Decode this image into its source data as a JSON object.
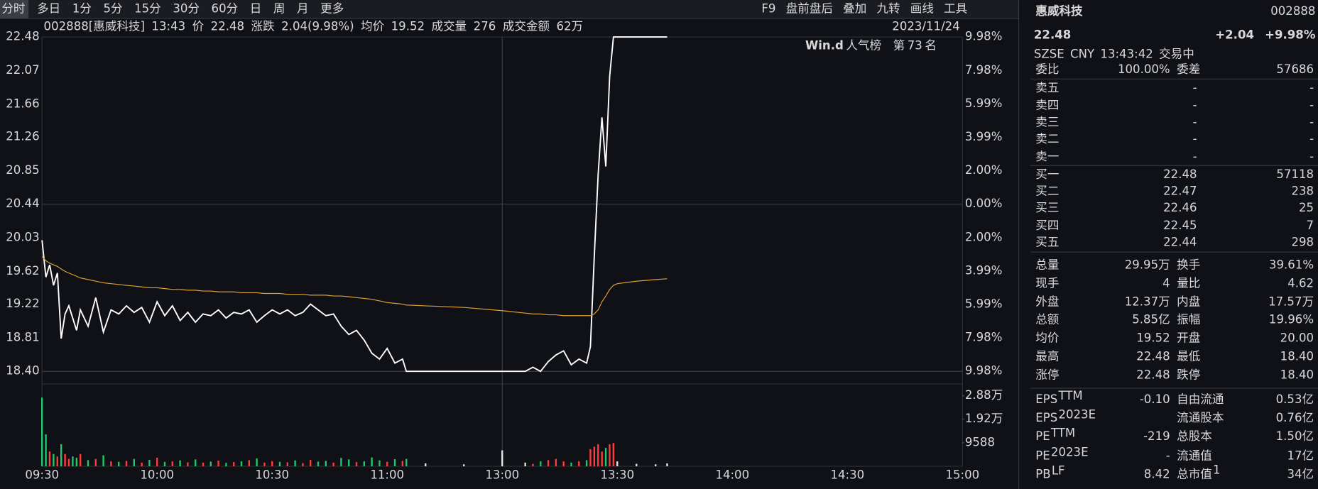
{
  "toolbar": {
    "left": [
      "分时",
      "多日",
      "1分",
      "5分",
      "15分",
      "30分",
      "60分",
      "日",
      "周",
      "月",
      "更多"
    ],
    "right": [
      "F9",
      "盘前盘后",
      "叠加",
      "九转",
      "画线",
      "工具"
    ]
  },
  "info": [
    {
      "text": "002888[惠威科技]",
      "color": "#d8d8d8"
    },
    {
      "text": "13:43",
      "color": "#4fd6e0"
    },
    {
      "text": "价",
      "color": "#d8d8d8"
    },
    {
      "text": "22.48",
      "color": "#ff3b3b"
    },
    {
      "text": "涨跌",
      "color": "#d8d8d8"
    },
    {
      "text": "2.04(9.98%)",
      "color": "#ff3b3b"
    },
    {
      "text": "均价",
      "color": "#d8d8d8"
    },
    {
      "text": "19.52",
      "color": "#1fc96b"
    },
    {
      "text": "成交量",
      "color": "#d8d8d8"
    },
    {
      "text": "276",
      "color": "#d8d8d8"
    },
    {
      "text": "成交金额",
      "color": "#d8d8d8"
    },
    {
      "text": "62万",
      "color": "#d8d8d8"
    }
  ],
  "date": "2023/11/24",
  "badge": {
    "brand": "Win.d",
    "list": "人气榜",
    "rank_prefix": "第",
    "rank": "73",
    "rank_suffix": "名"
  },
  "chart_data": [
    {
      "type": "line",
      "x": [
        0,
        1,
        2,
        3,
        4,
        5,
        6,
        7,
        8,
        9,
        10,
        12,
        14,
        16,
        18,
        20,
        22,
        24,
        26,
        28,
        30,
        32,
        34,
        36,
        38,
        40,
        42,
        44,
        46,
        48,
        50,
        52,
        54,
        56,
        58,
        60,
        62,
        64,
        66,
        68,
        70,
        72,
        74,
        76,
        78,
        80,
        82,
        84,
        86,
        88,
        90,
        92,
        94,
        95,
        100,
        110,
        120,
        126,
        128,
        130,
        132,
        134,
        136,
        138,
        140,
        142,
        143,
        144,
        145,
        146,
        147,
        148,
        149,
        150,
        155,
        160,
        163
      ],
      "series": [
        {
          "color": "#ffffff",
          "values": [
            20.0,
            19.55,
            19.7,
            19.45,
            19.6,
            18.8,
            19.1,
            19.2,
            19.05,
            18.9,
            19.15,
            18.95,
            19.3,
            18.88,
            19.15,
            19.1,
            19.2,
            19.12,
            19.18,
            19.0,
            19.25,
            19.08,
            19.2,
            19.02,
            19.12,
            19.0,
            19.1,
            19.08,
            19.15,
            19.05,
            19.12,
            19.1,
            19.15,
            19.0,
            19.08,
            19.15,
            19.1,
            19.15,
            19.08,
            19.12,
            19.22,
            19.15,
            19.08,
            19.1,
            18.95,
            18.85,
            18.9,
            18.78,
            18.62,
            18.55,
            18.68,
            18.5,
            18.55,
            18.4,
            18.4,
            18.4,
            18.4,
            18.4,
            18.45,
            18.4,
            18.52,
            18.6,
            18.65,
            18.48,
            18.55,
            18.5,
            18.7,
            19.8,
            20.8,
            21.5,
            20.9,
            22.0,
            22.48,
            22.48,
            22.48,
            22.48,
            22.48
          ]
        },
        {
          "color": "#e0a030",
          "values": [
            19.8,
            19.75,
            19.72,
            19.7,
            19.68,
            19.65,
            19.62,
            19.6,
            19.58,
            19.56,
            19.54,
            19.52,
            19.5,
            19.48,
            19.47,
            19.46,
            19.45,
            19.44,
            19.43,
            19.42,
            19.42,
            19.41,
            19.4,
            19.4,
            19.39,
            19.39,
            19.38,
            19.38,
            19.37,
            19.37,
            19.37,
            19.36,
            19.36,
            19.36,
            19.35,
            19.35,
            19.35,
            19.34,
            19.34,
            19.34,
            19.33,
            19.33,
            19.33,
            19.32,
            19.32,
            19.31,
            19.3,
            19.29,
            19.28,
            19.26,
            19.24,
            19.23,
            19.22,
            19.21,
            19.2,
            19.18,
            19.14,
            19.11,
            19.1,
            19.1,
            19.09,
            19.09,
            19.08,
            19.08,
            19.08,
            19.08,
            19.08,
            19.1,
            19.15,
            19.25,
            19.32,
            19.4,
            19.45,
            19.47,
            19.5,
            19.52,
            19.53
          ]
        }
      ],
      "xlim": [
        0,
        240
      ],
      "ylim": [
        18.4,
        22.48
      ],
      "yticks": [
        {
          "value": 18.4,
          "label": "18.40"
        },
        18.81,
        19.22,
        19.62,
        20.03,
        20.44,
        20.85,
        21.26,
        21.66,
        22.07,
        22.48
      ],
      "y2lim": [
        -9.98,
        9.98
      ],
      "y2ticks": [
        {
          "value": -9.98,
          "label": "9.98%"
        },
        {
          "value": -7.98,
          "label": "7.98%"
        },
        {
          "value": -5.99,
          "label": "5.99%"
        },
        {
          "value": -3.99,
          "label": "3.99%"
        },
        {
          "value": -2.0,
          "label": "2.00%"
        },
        {
          "value": 0,
          "label": "0.00%"
        },
        {
          "value": 2.0,
          "label": "2.00%"
        },
        {
          "value": 3.99,
          "label": "3.99%"
        },
        {
          "value": 5.99,
          "label": "5.99%"
        },
        {
          "value": 7.98,
          "label": "7.98%"
        },
        {
          "value": 9.98,
          "label": "9.98%"
        }
      ],
      "up_color": "#ff3b3b",
      "down_color": "#1fc96b",
      "flat_color": "#e6e6e6"
    },
    {
      "type": "bar",
      "x": [
        0,
        1,
        2,
        3,
        4,
        5,
        6,
        7,
        8,
        9,
        10,
        12,
        14,
        16,
        18,
        20,
        22,
        24,
        26,
        28,
        30,
        32,
        34,
        36,
        38,
        40,
        42,
        44,
        46,
        48,
        50,
        52,
        54,
        56,
        58,
        60,
        62,
        64,
        66,
        68,
        70,
        72,
        74,
        76,
        78,
        80,
        82,
        84,
        86,
        88,
        90,
        92,
        94,
        95,
        100,
        110,
        120,
        126,
        128,
        130,
        132,
        134,
        136,
        138,
        140,
        142,
        143,
        144,
        145,
        146,
        147,
        148,
        149,
        150,
        155,
        160,
        163
      ],
      "values": [
        28000,
        13000,
        6000,
        5000,
        4000,
        9000,
        5000,
        3000,
        4000,
        3500,
        5000,
        2500,
        3000,
        4500,
        2000,
        1800,
        2200,
        3000,
        1500,
        2600,
        3500,
        1800,
        2000,
        2400,
        1600,
        2800,
        1500,
        1900,
        2300,
        1400,
        1700,
        2000,
        2500,
        3200,
        1500,
        2100,
        1800,
        1600,
        2400,
        1300,
        2600,
        1900,
        2200,
        1500,
        3400,
        2800,
        1700,
        2000,
        3600,
        2400,
        1800,
        2900,
        2200,
        3000,
        1200,
        800,
        6500,
        1500,
        1000,
        2000,
        2500,
        3000,
        2000,
        1500,
        2000,
        2500,
        7000,
        8000,
        9000,
        6000,
        7500,
        9000,
        9500,
        2000,
        1000,
        800,
        1200
      ],
      "xlim": [
        0,
        240
      ],
      "ylim": [
        0,
        33558
      ],
      "yticks": [
        9588,
        {
          "value": 19176,
          "label": "1.92万"
        },
        {
          "value": 28764,
          "label": "2.88万"
        }
      ],
      "xticks": [
        {
          "value": 0,
          "label": "09:30"
        },
        {
          "value": 30,
          "label": "10:00"
        },
        {
          "value": 60,
          "label": "10:30"
        },
        {
          "value": 90,
          "label": "11:00"
        },
        {
          "value": 120,
          "label": "13:00"
        },
        {
          "value": 150,
          "label": "13:30"
        },
        {
          "value": 180,
          "label": "14:00"
        },
        {
          "value": 210,
          "label": "14:30"
        },
        {
          "value": 240,
          "label": "15:00"
        }
      ]
    }
  ],
  "quote": {
    "name": "惠威科技",
    "code": "002888",
    "price": "22.48",
    "change": "+2.04",
    "change_pct": "+9.98%",
    "exchange": "SZSE",
    "currency": "CNY",
    "time": "13:43:42",
    "status": "交易中"
  },
  "order_book": {
    "ratio_label": "委比",
    "ratio": "100.00%",
    "diff_label": "委差",
    "diff": "57686",
    "asks": [
      {
        "label": "卖五",
        "price": "-",
        "volume": "-"
      },
      {
        "label": "卖四",
        "price": "-",
        "volume": "-"
      },
      {
        "label": "卖三",
        "price": "-",
        "volume": "-"
      },
      {
        "label": "卖二",
        "price": "-",
        "volume": "-"
      },
      {
        "label": "卖一",
        "price": "-",
        "volume": "-"
      }
    ],
    "bids": [
      {
        "label": "买一",
        "price": "22.48",
        "volume": "57118"
      },
      {
        "label": "买二",
        "price": "22.47",
        "volume": "238"
      },
      {
        "label": "买三",
        "price": "22.46",
        "volume": "25"
      },
      {
        "label": "买四",
        "price": "22.45",
        "volume": "7"
      },
      {
        "label": "买五",
        "price": "22.44",
        "volume": "298"
      }
    ]
  },
  "stats": [
    [
      {
        "label": "总量",
        "value": "29.95万",
        "color": "#e6e6e6"
      },
      {
        "label": "换手",
        "value": "39.61%",
        "color": "#e6e6e6"
      }
    ],
    [
      {
        "label": "现手",
        "value": "4",
        "color": "#e6e6e6"
      },
      {
        "label": "量比",
        "value": "4.62",
        "color": "#e6e6e6"
      }
    ],
    [
      {
        "label": "外盘",
        "value": "12.37万",
        "color": "#ff3b3b"
      },
      {
        "label": "内盘",
        "value": "17.57万",
        "color": "#1fc96b"
      }
    ],
    [
      {
        "label": "总额",
        "value": "5.85亿",
        "color": "#e6e6e6"
      },
      {
        "label": "振幅",
        "value": "19.96%",
        "color": "#e6e6e6"
      }
    ],
    [
      {
        "label": "均价",
        "value": "19.52",
        "color": "#1fc96b"
      },
      {
        "label": "开盘",
        "value": "20.00",
        "color": "#1fc96b"
      }
    ],
    [
      {
        "label": "最高",
        "value": "22.48",
        "color": "#ff3b3b"
      },
      {
        "label": "最低",
        "value": "18.40",
        "color": "#1fc96b"
      }
    ],
    [
      {
        "label": "涨停",
        "value": "22.48",
        "color": "#ff3b3b"
      },
      {
        "label": "跌停",
        "value": "18.40",
        "color": "#1fc96b"
      }
    ]
  ],
  "fundamentals": [
    [
      {
        "label": "EPS",
        "sup": "TTM",
        "value": "-0.10"
      },
      {
        "label": "自由流通",
        "value": "0.53亿"
      }
    ],
    [
      {
        "label": "EPS",
        "sup": "2023E"
      },
      {
        "label": "流通股本",
        "value": "0.76亿"
      }
    ],
    [
      {
        "label": "PE",
        "sup": "TTM",
        "value": "-219"
      },
      {
        "label": "总股本",
        "value": "1.50亿"
      }
    ],
    [
      {
        "label": "PE",
        "sup": "2023E",
        "value": "-"
      },
      {
        "label": "流通值",
        "value": "17亿"
      }
    ],
    [
      {
        "label": "PB",
        "sup": "LF",
        "value": "8.42"
      },
      {
        "label": "总市值",
        "sup": "1",
        "value": "34亿"
      }
    ]
  ]
}
